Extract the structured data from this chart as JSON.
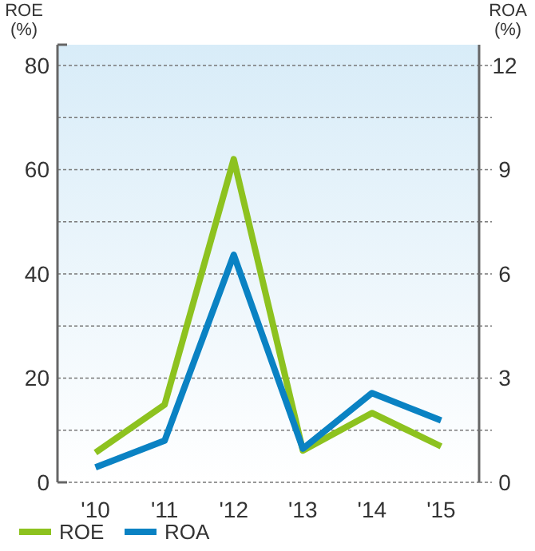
{
  "chart_data": {
    "type": "line",
    "ylabel": "ROE\n(%)",
    "y2label": "ROA\n(%)",
    "categories": [
      "'10",
      "'11",
      "'12",
      "'13",
      "'14",
      "'15"
    ],
    "series": [
      {
        "name": "ROE",
        "color": "#8dc21f",
        "values": [
          5.7,
          14.9,
          62,
          6.1,
          13.3,
          6.9
        ]
      },
      {
        "name": "ROA",
        "color": "#0a82c3",
        "axis": "y2",
        "values": [
          0.43,
          1.2,
          6.55,
          0.97,
          2.57,
          1.78
        ]
      }
    ],
    "ylim": [
      0,
      80
    ],
    "yticks": [
      0,
      {
        "value": 10,
        "label": null
      },
      20,
      {
        "value": 30,
        "label": null
      },
      40,
      {
        "value": 50,
        "label": null
      },
      60,
      {
        "value": 70,
        "label": null
      },
      80
    ],
    "y2lim": [
      0,
      12
    ],
    "y2ticks": [
      0,
      {
        "value": 1.5,
        "label": null
      },
      3,
      {
        "value": 4.5,
        "label": null
      },
      6,
      {
        "value": 7.5,
        "label": null
      },
      9,
      {
        "value": 10.5,
        "label": null
      },
      12
    ],
    "grid": "y",
    "legend": "bottom left",
    "marker": "none",
    "line_style": "solid"
  }
}
